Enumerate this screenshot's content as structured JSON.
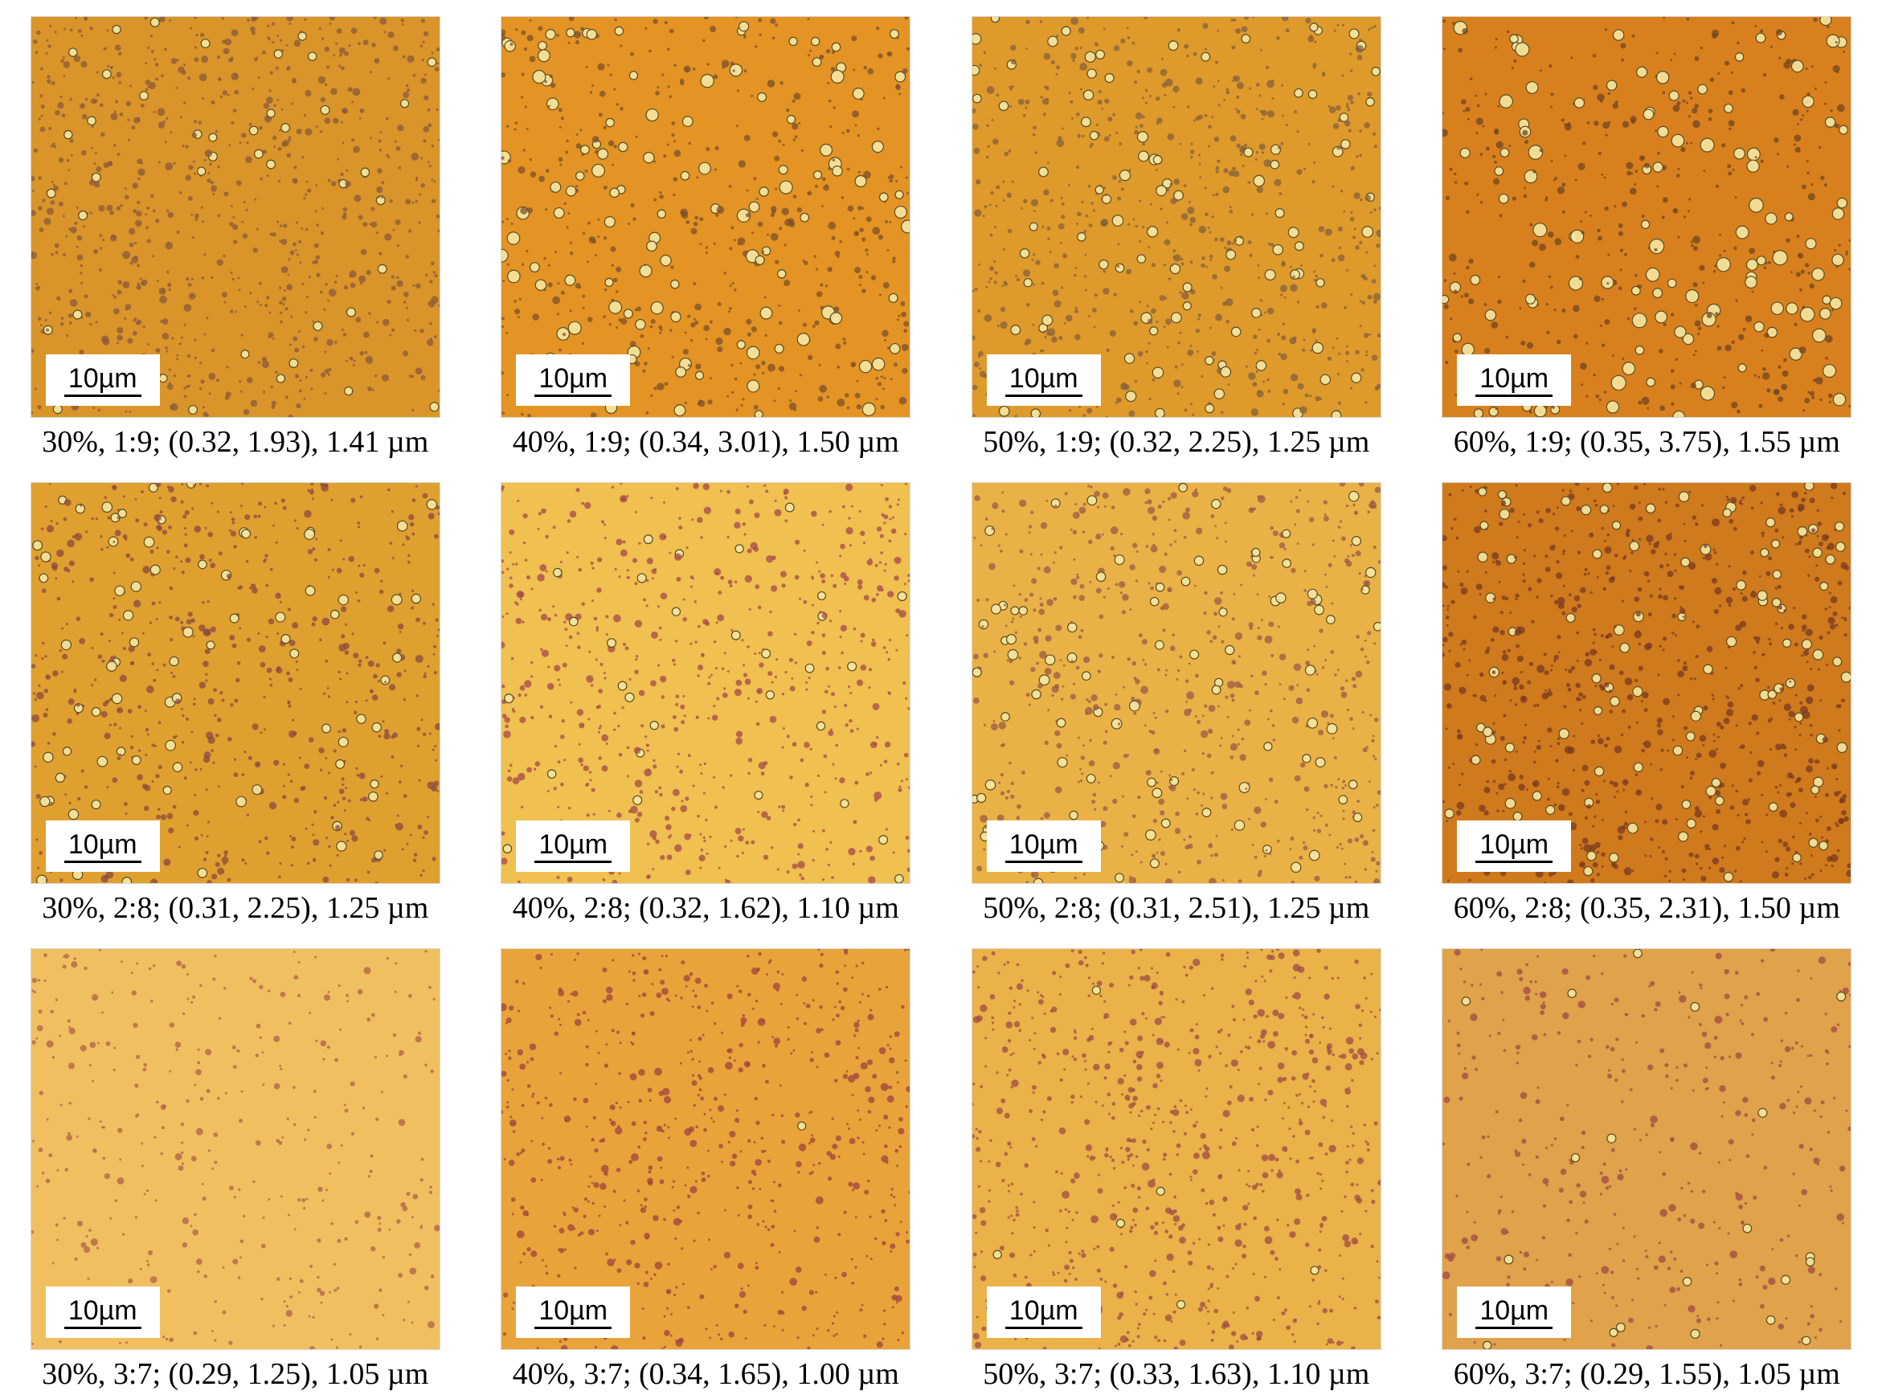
{
  "panels": [
    {
      "scale_label": "10µm",
      "caption": "30%, 1:9; (0.32, 1.93), 1.41 µm",
      "bg": "#d9952a",
      "density": 0.95,
      "size": 0.45,
      "dot": "#8a5a3a"
    },
    {
      "scale_label": "10µm",
      "caption": "40%, 1:9; (0.34, 3.01), 1.50 µm",
      "bg": "#e39424",
      "density": 0.7,
      "size": 0.75,
      "dot": "#7c4f2a"
    },
    {
      "scale_label": "10µm",
      "caption": "50%, 1:9; (0.32, 2.25), 1.25 µm",
      "bg": "#df9a2c",
      "density": 0.85,
      "size": 0.6,
      "dot": "#84603a"
    },
    {
      "scale_label": "10µm",
      "caption": "60%, 1:9; (0.35, 3.75), 1.55 µm",
      "bg": "#d9801e",
      "density": 0.6,
      "size": 0.85,
      "dot": "#6f4520"
    },
    {
      "scale_label": "10µm",
      "caption": "30%, 2:8; (0.31, 2.25), 1.25 µm",
      "bg": "#e0a030",
      "density": 0.8,
      "size": 0.55,
      "dot": "#8b4a3e"
    },
    {
      "scale_label": "10µm",
      "caption": "40%, 2:8; (0.32, 1.62), 1.10 µm",
      "bg": "#f0c050",
      "density": 0.75,
      "size": 0.45,
      "dot": "#a5484a"
    },
    {
      "scale_label": "10µm",
      "caption": "50%, 2:8; (0.31, 2.51), 1.25 µm",
      "bg": "#eab246",
      "density": 0.8,
      "size": 0.55,
      "dot": "#9a5a45"
    },
    {
      "scale_label": "10µm",
      "caption": "60%, 2:8; (0.35, 2.31), 1.50 µm",
      "bg": "#cf7a1c",
      "density": 1.0,
      "size": 0.55,
      "dot": "#7a3a22"
    },
    {
      "scale_label": "10µm",
      "caption": "30%, 3:7; (0.29, 1.25), 1.05 µm",
      "bg": "#f0c060",
      "density": 0.4,
      "size": 0.35,
      "dot": "#b0604a"
    },
    {
      "scale_label": "10µm",
      "caption": "40%, 3:7; (0.34, 1.65), 1.00 µm",
      "bg": "#e8a43a",
      "density": 0.7,
      "size": 0.4,
      "dot": "#a0423e"
    },
    {
      "scale_label": "10µm",
      "caption": "50%, 3:7; (0.33, 1.63), 1.10 µm",
      "bg": "#eab248",
      "density": 0.85,
      "size": 0.4,
      "dot": "#a04a44"
    },
    {
      "scale_label": "10µm",
      "caption": "60%, 3:7; (0.29, 1.55), 1.05 µm",
      "bg": "#e0a24a",
      "density": 0.45,
      "size": 0.45,
      "dot": "#a04846"
    }
  ]
}
